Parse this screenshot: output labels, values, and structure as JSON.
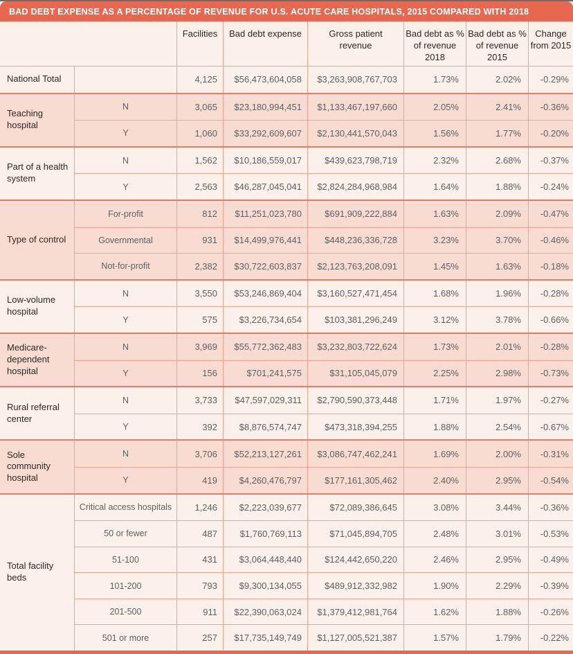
{
  "title": "BAD DEBT EXPENSE AS A PERCENTAGE OF REVENUE FOR U.S. ACUTE CARE HOSPITALS, 2015 COMPARED WITH 2018",
  "colors": {
    "coral_accent": "#E7684F",
    "group_border": "#E87B61",
    "cell_border": "#EFA28C",
    "row_pink": "#F8DCD2",
    "row_cream": "#FCF0EA",
    "text_dark": "#2E2722",
    "text_gray": "#5E5E62",
    "title_text": "#FFFFFF"
  },
  "chart_data": {
    "type": "table",
    "title": "BAD DEBT EXPENSE AS A PERCENTAGE OF REVENUE FOR U.S. ACUTE CARE HOSPITALS, 2015 COMPARED WITH 2018",
    "column_headers": [
      "",
      "Facilities",
      "Bad debt expense",
      "Gross patient revenue",
      "Bad debt as % of revenue 2018",
      "Bad debt as % of revenue 2015",
      "Change from 2015"
    ],
    "groups": [
      {
        "label": "National Total",
        "rows": [
          {
            "sub": "",
            "facilities": "4,125",
            "bad_debt": "$56,473,604,058",
            "gross": "$3,263,908,767,703",
            "pct2018": "1.73%",
            "pct2015": "2.02%",
            "change": "-0.29%"
          }
        ]
      },
      {
        "label": "Teaching hospital",
        "rows": [
          {
            "sub": "N",
            "facilities": "3,065",
            "bad_debt": "$23,180,994,451",
            "gross": "$1,133,467,197,660",
            "pct2018": "2.05%",
            "pct2015": "2.41%",
            "change": "-0.36%"
          },
          {
            "sub": "Y",
            "facilities": "1,060",
            "bad_debt": "$33,292,609,607",
            "gross": "$2,130,441,570,043",
            "pct2018": "1.56%",
            "pct2015": "1.77%",
            "change": "-0.20%"
          }
        ]
      },
      {
        "label": "Part of a health system",
        "rows": [
          {
            "sub": "N",
            "facilities": "1,562",
            "bad_debt": "$10,186,559,017",
            "gross": "$439,623,798,719",
            "pct2018": "2.32%",
            "pct2015": "2.68%",
            "change": "-0.37%"
          },
          {
            "sub": "Y",
            "facilities": "2,563",
            "bad_debt": "$46,287,045,041",
            "gross": "$2,824,284,968,984",
            "pct2018": "1.64%",
            "pct2015": "1.88%",
            "change": "-0.24%"
          }
        ]
      },
      {
        "label": "Type of control",
        "rows": [
          {
            "sub": "For-profit",
            "facilities": "812",
            "bad_debt": "$11,251,023,780",
            "gross": "$691,909,222,884",
            "pct2018": "1.63%",
            "pct2015": "2.09%",
            "change": "-0.47%"
          },
          {
            "sub": "Governmental",
            "facilities": "931",
            "bad_debt": "$14,499,976,441",
            "gross": "$448,236,336,728",
            "pct2018": "3.23%",
            "pct2015": "3.70%",
            "change": "-0.46%"
          },
          {
            "sub": "Not-for-profit",
            "facilities": "2,382",
            "bad_debt": "$30,722,603,837",
            "gross": "$2,123,763,208,091",
            "pct2018": "1.45%",
            "pct2015": "1.63%",
            "change": "-0.18%"
          }
        ]
      },
      {
        "label": "Low-volume hospital",
        "rows": [
          {
            "sub": "N",
            "facilities": "3,550",
            "bad_debt": "$53,246,869,404",
            "gross": "$3,160,527,471,454",
            "pct2018": "1.68%",
            "pct2015": "1.96%",
            "change": "-0.28%"
          },
          {
            "sub": "Y",
            "facilities": "575",
            "bad_debt": "$3,226,734,654",
            "gross": "$103,381,296,249",
            "pct2018": "3.12%",
            "pct2015": "3.78%",
            "change": "-0.66%"
          }
        ]
      },
      {
        "label": "Medicare-dependent hospital",
        "rows": [
          {
            "sub": "N",
            "facilities": "3,969",
            "bad_debt": "$55,772,362,483",
            "gross": "$3,232,803,722,624",
            "pct2018": "1.73%",
            "pct2015": "2.01%",
            "change": "-0.28%"
          },
          {
            "sub": "Y",
            "facilities": "156",
            "bad_debt": "$701,241,575",
            "gross": "$31,105,045,079",
            "pct2018": "2.25%",
            "pct2015": "2.98%",
            "change": "-0.73%"
          }
        ]
      },
      {
        "label": "Rural referral center",
        "rows": [
          {
            "sub": "N",
            "facilities": "3,733",
            "bad_debt": "$47,597,029,311",
            "gross": "$2,790,590,373,448",
            "pct2018": "1.71%",
            "pct2015": "1.97%",
            "change": "-0.27%"
          },
          {
            "sub": "Y",
            "facilities": "392",
            "bad_debt": "$8,876,574,747",
            "gross": "$473,318,394,255",
            "pct2018": "1.88%",
            "pct2015": "2.54%",
            "change": "-0.67%"
          }
        ]
      },
      {
        "label": "Sole community hospital",
        "rows": [
          {
            "sub": "N",
            "facilities": "3,706",
            "bad_debt": "$52,213,127,261",
            "gross": "$3,086,747,462,241",
            "pct2018": "1.69%",
            "pct2015": "2.00%",
            "change": "-0.31%"
          },
          {
            "sub": "Y",
            "facilities": "419",
            "bad_debt": "$4,260,476,797",
            "gross": "$177,161,305,462",
            "pct2018": "2.40%",
            "pct2015": "2.95%",
            "change": "-0.54%"
          }
        ]
      },
      {
        "label": "Total facility beds",
        "rows": [
          {
            "sub": "Critical access hospitals",
            "facilities": "1,246",
            "bad_debt": "$2,223,039,677",
            "gross": "$72,089,386,645",
            "pct2018": "3.08%",
            "pct2015": "3.44%",
            "change": "-0.36%"
          },
          {
            "sub": "50 or fewer",
            "facilities": "487",
            "bad_debt": "$1,760,769,113",
            "gross": "$71,045,894,705",
            "pct2018": "2.48%",
            "pct2015": "3.01%",
            "change": "-0.53%"
          },
          {
            "sub": "51-100",
            "facilities": "431",
            "bad_debt": "$3,064,448,440",
            "gross": "$124,442,650,220",
            "pct2018": "2.46%",
            "pct2015": "2.95%",
            "change": "-0.49%"
          },
          {
            "sub": "101-200",
            "facilities": "793",
            "bad_debt": "$9,300,134,055",
            "gross": "$489,912,332,982",
            "pct2018": "1.90%",
            "pct2015": "2.29%",
            "change": "-0.39%"
          },
          {
            "sub": "201-500",
            "facilities": "911",
            "bad_debt": "$22,390,063,024",
            "gross": "$1,379,412,981,764",
            "pct2018": "1.62%",
            "pct2015": "1.88%",
            "change": "-0.26%"
          },
          {
            "sub": "501 or more",
            "facilities": "257",
            "bad_debt": "$17,735,149,749",
            "gross": "$1,127,005,521,387",
            "pct2018": "1.57%",
            "pct2015": "1.79%",
            "change": "-0.22%"
          }
        ]
      }
    ]
  }
}
